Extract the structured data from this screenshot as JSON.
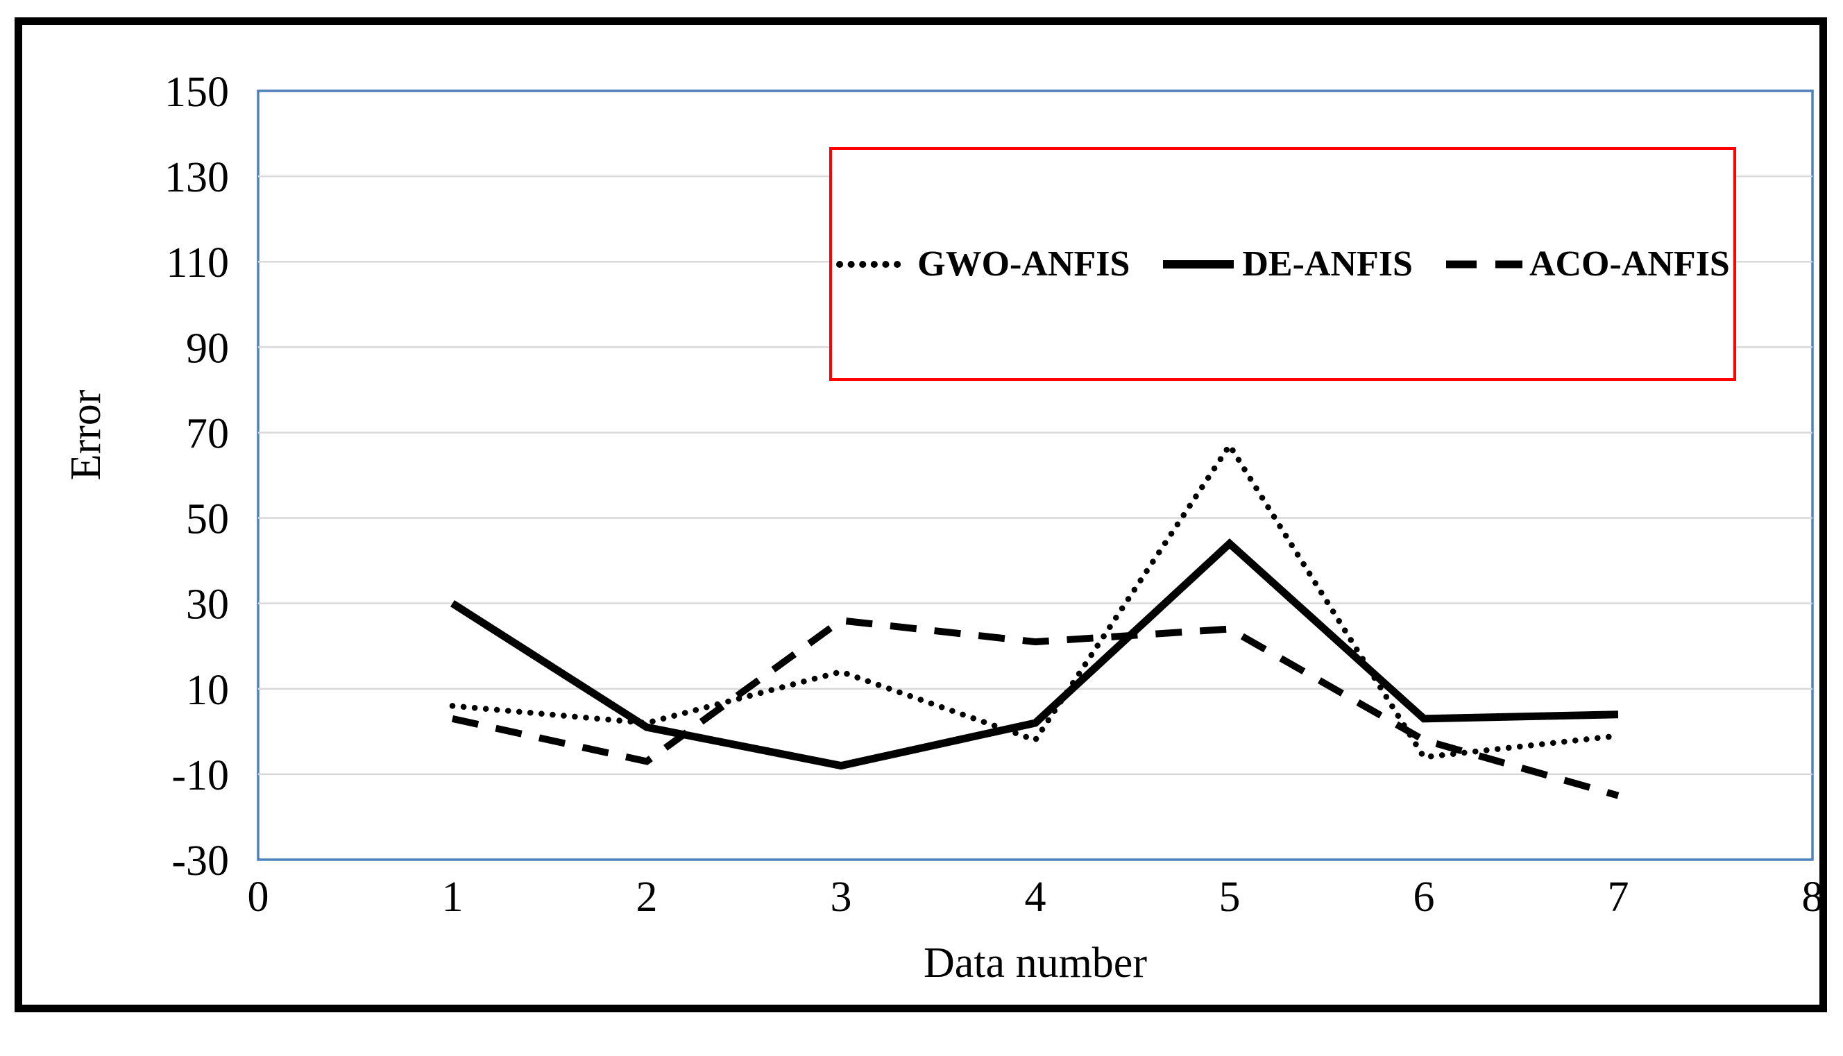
{
  "colors": {
    "frame_border": "#000000",
    "plot_border": "#4F81BD",
    "gridline": "#D9D9D9",
    "legend_border": "#FF0000",
    "series_color": "#000000",
    "background": "#FFFFFF"
  },
  "y_axis": {
    "title": "Error",
    "ticks": [
      "150",
      "130",
      "110",
      "90",
      "70",
      "50",
      "30",
      "10",
      "-10",
      "-30"
    ]
  },
  "x_axis": {
    "title": "Data number",
    "ticks": [
      "0",
      "1",
      "2",
      "3",
      "4",
      "5",
      "6",
      "7",
      "8"
    ]
  },
  "legend": {
    "items": [
      {
        "label": "GWO-ANFIS",
        "style": "dotted"
      },
      {
        "label": "DE-ANFIS",
        "style": "solid"
      },
      {
        "label": "ACO-ANFIS",
        "style": "dashed"
      }
    ]
  },
  "chart_data": {
    "type": "line",
    "title": "",
    "xlabel": "Data number",
    "ylabel": "Error",
    "x": [
      1,
      2,
      3,
      4,
      5,
      6,
      7
    ],
    "series": [
      {
        "name": "GWO-ANFIS",
        "line_style": "dotted",
        "color": "#000000",
        "values": [
          6,
          2,
          14,
          -2,
          67,
          -6,
          -1
        ]
      },
      {
        "name": "DE-ANFIS",
        "line_style": "solid",
        "color": "#000000",
        "values": [
          30,
          1,
          -8,
          2,
          44,
          3,
          4
        ]
      },
      {
        "name": "ACO-ANFIS",
        "line_style": "dashed",
        "color": "#000000",
        "values": [
          3,
          -7,
          26,
          21,
          24,
          -2,
          -15
        ]
      }
    ],
    "xlim": [
      0,
      8
    ],
    "ylim": [
      -30,
      150
    ],
    "y_tick_step": 20,
    "grid": "horizontal",
    "legend_position": "top-center-boxed"
  }
}
